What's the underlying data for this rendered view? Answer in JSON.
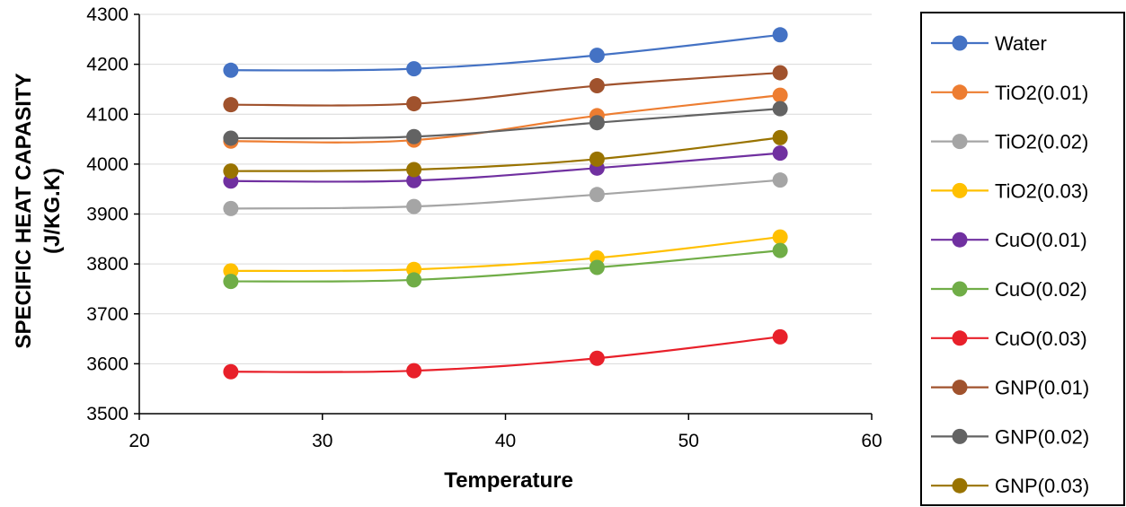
{
  "chart_data": {
    "type": "line",
    "title": "",
    "xlabel": "Temperature",
    "ylabel_lines": [
      "SPECIFIC HEAT CAPASITY",
      "(J/KG.K)"
    ],
    "xlim": [
      20,
      60
    ],
    "ylim": [
      3500,
      4300
    ],
    "xticks": [
      20,
      30,
      40,
      50,
      60
    ],
    "yticks": [
      3500,
      3600,
      3700,
      3800,
      3900,
      4000,
      4100,
      4200,
      4300
    ],
    "grid": true,
    "legend_position": "right",
    "x": [
      25,
      35,
      45,
      55
    ],
    "series": [
      {
        "name": "Water",
        "color": "#4472C4",
        "values": [
          4188,
          4191,
          4218,
          4259
        ]
      },
      {
        "name": "TiO2(0.01)",
        "color": "#ED7D31",
        "values": [
          4046,
          4048,
          4097,
          4138
        ]
      },
      {
        "name": "TiO2(0.02)",
        "color": "#A5A5A5",
        "values": [
          3911,
          3915,
          3939,
          3968
        ]
      },
      {
        "name": "TiO2(0.03)",
        "color": "#FFC000",
        "values": [
          3786,
          3789,
          3812,
          3854
        ]
      },
      {
        "name": "CuO(0.01)",
        "color": "#7030A0",
        "values": [
          3966,
          3967,
          3992,
          4022
        ]
      },
      {
        "name": "CuO(0.02)",
        "color": "#70AD47",
        "values": [
          3765,
          3768,
          3793,
          3827
        ]
      },
      {
        "name": "CuO(0.03)",
        "color": "#E8202A",
        "values": [
          3584,
          3586,
          3611,
          3654
        ]
      },
      {
        "name": "GNP(0.01)",
        "color": "#A0522D",
        "values": [
          4119,
          4121,
          4157,
          4183
        ]
      },
      {
        "name": "GNP(0.02)",
        "color": "#636363",
        "values": [
          4052,
          4055,
          4083,
          4111
        ]
      },
      {
        "name": "GNP(0.03)",
        "color": "#997300",
        "values": [
          3986,
          3989,
          4010,
          4053
        ]
      }
    ]
  }
}
